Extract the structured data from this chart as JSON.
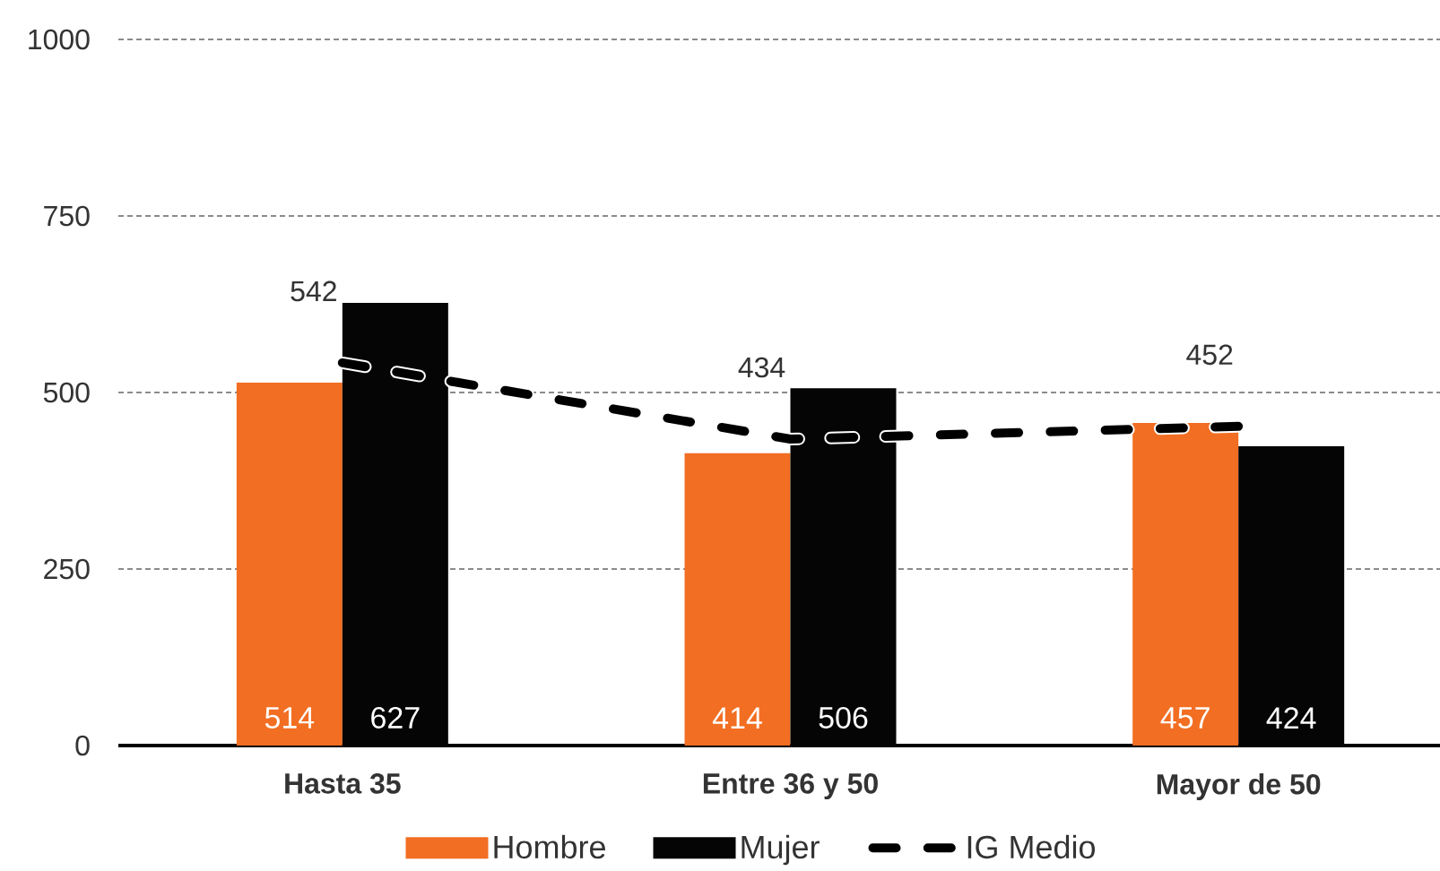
{
  "chart_data": {
    "type": "bar",
    "categories": [
      "Hasta 35",
      "Entre 36 y 50",
      "Mayor de 50"
    ],
    "series": [
      {
        "name": "Hombre",
        "color": "#f26e22",
        "values": [
          514,
          414,
          457
        ]
      },
      {
        "name": "Mujer",
        "color": "#050505",
        "values": [
          627,
          506,
          424
        ]
      },
      {
        "name": "IG Medio",
        "type": "line",
        "color": "#000000",
        "line_style": "dashed",
        "marker": "none",
        "values": [
          542,
          434,
          452
        ]
      }
    ],
    "ylim": [
      0,
      1000
    ],
    "yticks": [
      0,
      250,
      500,
      750,
      1000
    ],
    "grid": "y",
    "legend": "bottom",
    "data_labels": true
  }
}
